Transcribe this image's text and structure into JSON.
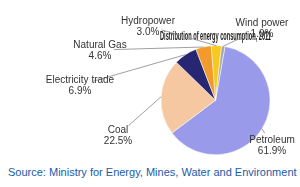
{
  "chart_data": {
    "type": "pie",
    "title": "Distribution of energy consumption, 2011",
    "categories": [
      "Petroleum",
      "Coal",
      "Electricity trade",
      "Natural Gas",
      "Hydropower",
      "Wind power"
    ],
    "values": [
      61.9,
      22.5,
      6.9,
      4.6,
      3.0,
      1.0
    ],
    "value_labels": [
      "61.9%",
      "22.5%",
      "6.9%",
      "4.6%",
      "3.0%",
      "1.0%"
    ],
    "colors": [
      "#9a9aea",
      "#f6c8a2",
      "#262673",
      "#f39a2c",
      "#f7c81e",
      "#a8a8a8"
    ],
    "data_labels": true,
    "source": "Source: Ministry for Energy, Mines, Water and Environment"
  }
}
